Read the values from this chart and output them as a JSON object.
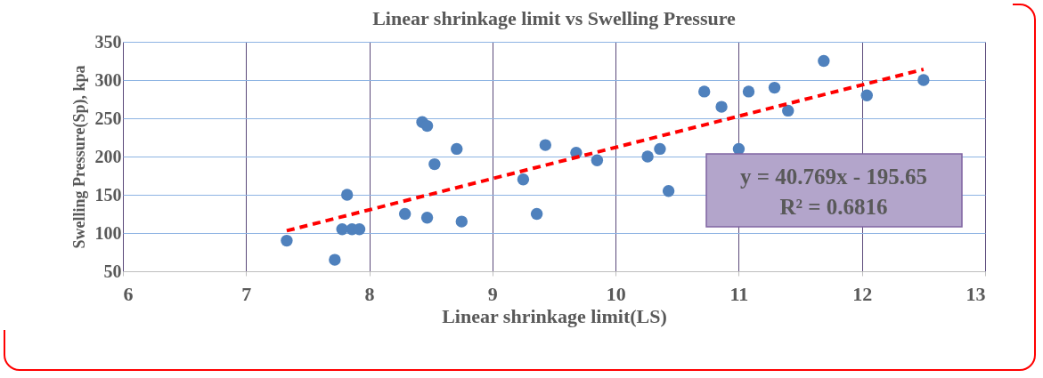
{
  "chart_data": {
    "type": "scatter",
    "title": "Linear shrinkage limit  vs Swelling Pressure",
    "xlabel": "Linear shrinkage limit(LS)",
    "ylabel": "Swelling Pressure(Sp), kpa",
    "xlim": [
      6,
      13
    ],
    "xticks": [
      6,
      7,
      8,
      9,
      10,
      11,
      12,
      13
    ],
    "ylim": [
      50,
      350
    ],
    "yticks": [
      50,
      100,
      150,
      200,
      250,
      300,
      350
    ],
    "grid": true,
    "marker": "circle",
    "annotations": [
      "y = 40.769x - 195.65",
      "R² = 0.6816"
    ],
    "series": [
      {
        "color": "#4f81bd",
        "x": [
          7.33,
          7.72,
          7.78,
          7.82,
          7.86,
          7.92,
          8.29,
          8.43,
          8.47,
          8.47,
          8.53,
          8.71,
          8.75,
          9.25,
          9.36,
          9.43,
          9.68,
          9.85,
          10.26,
          10.36,
          10.43,
          10.72,
          10.86,
          11.0,
          11.08,
          11.29,
          11.4,
          11.69,
          12.04,
          12.5
        ],
        "values": [
          90,
          65,
          105,
          150,
          105,
          105,
          125,
          245,
          240,
          120,
          190,
          210,
          115,
          170,
          125,
          215,
          205,
          195,
          200,
          210,
          155,
          285,
          265,
          210,
          285,
          290,
          260,
          325,
          280,
          300
        ]
      },
      {
        "type": "line",
        "color": "#ff0000",
        "line_style": "dashed",
        "marker": "none",
        "x": [
          7.33,
          12.5
        ],
        "values": [
          103,
          314
        ]
      }
    ]
  }
}
